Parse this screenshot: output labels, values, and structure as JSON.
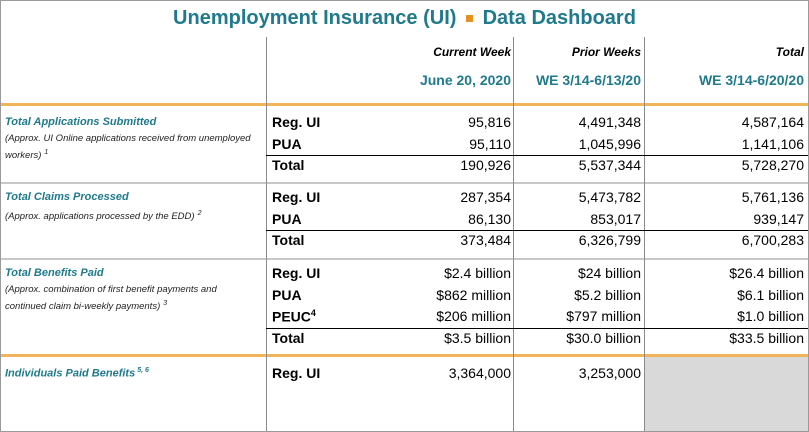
{
  "title": {
    "left": "Unemployment Insurance (UI)",
    "right": "Data Dashboard"
  },
  "columns": [
    {
      "label": "Current Week",
      "date": "June 20, 2020"
    },
    {
      "label": "Prior Weeks",
      "date": "WE 3/14-6/13/20"
    },
    {
      "label": "Total",
      "date": "WE 3/14-6/20/20"
    }
  ],
  "sections": [
    {
      "title": "Total Applications Submitted",
      "note": "(Approx. UI Online applications received from unemployed workers)",
      "note_sup": "1",
      "rows": [
        {
          "type": "Reg. UI",
          "values": [
            "95,816",
            "4,491,348",
            "4,587,164"
          ]
        },
        {
          "type": "PUA",
          "values": [
            "95,110",
            "1,045,996",
            "1,141,106"
          ]
        },
        {
          "type": "Total",
          "values": [
            "190,926",
            "5,537,344",
            "5,728,270"
          ]
        }
      ]
    },
    {
      "title": "Total Claims Processed",
      "note": "(Approx. applications processed by the EDD)",
      "note_sup": "2",
      "rows": [
        {
          "type": "Reg. UI",
          "values": [
            "287,354",
            "5,473,782",
            "5,761,136"
          ]
        },
        {
          "type": "PUA",
          "values": [
            "86,130",
            "853,017",
            "939,147"
          ]
        },
        {
          "type": "Total",
          "values": [
            "373,484",
            "6,326,799",
            "6,700,283"
          ]
        }
      ]
    },
    {
      "title": "Total Benefits Paid",
      "note": "(Approx. combination of first benefit payments and continued claim bi-weekly payments)",
      "note_sup": "3",
      "rows": [
        {
          "type": "Reg. UI",
          "values": [
            "$2.4 billion",
            "$24 billion",
            "$26.4 billion"
          ]
        },
        {
          "type": "PUA",
          "values": [
            "$862 million",
            "$5.2 billion",
            "$6.1 billion"
          ]
        },
        {
          "type": "PEUC",
          "type_sup": "4",
          "values": [
            "$206 million",
            "$797 million",
            "$1.0 billion"
          ]
        },
        {
          "type": "Total",
          "values": [
            "$3.5 billion",
            "$30.0 billion",
            "$33.5 billion"
          ]
        }
      ]
    },
    {
      "title": "Individuals Paid Benefits",
      "title_sup": "5, 6",
      "rows": [
        {
          "type": "Reg. UI",
          "values": [
            "3,364,000",
            "3,253,000"
          ]
        }
      ]
    }
  ]
}
